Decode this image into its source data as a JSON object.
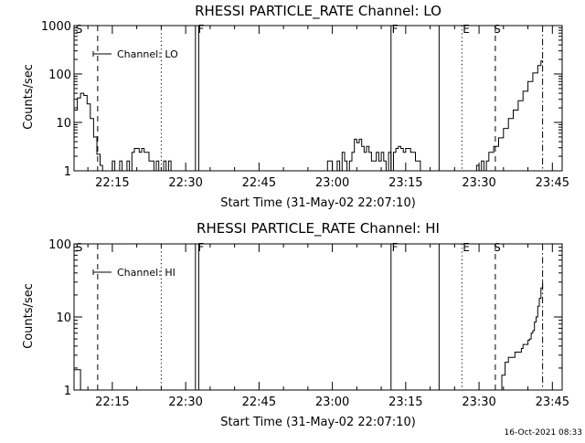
{
  "chart_data": [
    {
      "type": "line",
      "title": "RHESSI PARTICLE_RATE Channel: LO",
      "xlabel": "Start Time (31-May-02 22:07:10)",
      "ylabel": "Counts/sec",
      "yscale": "log",
      "xlim": [
        "22:07:10",
        "23:47:00"
      ],
      "ylim": [
        1,
        1000
      ],
      "x_ticks": [
        "22:15",
        "22:30",
        "22:45",
        "23:00",
        "23:15",
        "23:30",
        "23:45"
      ],
      "y_ticks": [
        "1",
        "10",
        "100",
        "1000"
      ],
      "legend": {
        "label": "Channel: LO",
        "position": "top-left"
      },
      "flag_labels": [
        {
          "text": "S",
          "time": "22:07:30"
        },
        {
          "text": "F",
          "time": "22:32:30"
        },
        {
          "text": "F",
          "time": "23:12:10"
        },
        {
          "text": "E",
          "time": "23:26:40"
        },
        {
          "text": "S",
          "time": "23:33:00"
        }
      ],
      "markers": [
        {
          "time": "22:12:00",
          "style": "dashed"
        },
        {
          "time": "22:25:00",
          "style": "dotted"
        },
        {
          "time": "22:32:00",
          "style": "solid"
        },
        {
          "time": "22:32:40",
          "style": "solid"
        },
        {
          "time": "23:12:00",
          "style": "solid"
        },
        {
          "time": "23:21:50",
          "style": "solid"
        },
        {
          "time": "23:26:30",
          "style": "dotted"
        },
        {
          "time": "23:33:20",
          "style": "dashed"
        },
        {
          "time": "23:43:00",
          "style": "dashdot"
        }
      ],
      "series": [
        {
          "x": [
            "22:07:10",
            "22:07:50",
            "22:08:30",
            "22:09:10",
            "22:09:50",
            "22:10:30",
            "22:11:10",
            "22:11:50",
            "22:12:30",
            "22:13:00",
            "22:13:30",
            "22:14:00",
            "22:14:20",
            "22:14:40",
            "22:15:00",
            "22:15:30",
            "22:16:00",
            "22:16:30",
            "22:17:00",
            "22:17:30",
            "22:18:00",
            "22:18:30",
            "22:19:00",
            "22:19:30",
            "22:20:00",
            "22:20:30",
            "22:21:00",
            "22:21:30",
            "22:22:00",
            "22:22:30",
            "22:23:00",
            "22:23:30",
            "22:24:00",
            "22:24:30",
            "22:25:00",
            "22:25:30",
            "22:26:00",
            "22:26:30",
            "22:27:00",
            "22:28:00",
            "22:29:00",
            "22:30:00",
            "22:31:00",
            "22:32:00",
            "22:32:30",
            "22:33:00",
            "22:40:00",
            "22:50:00",
            "22:58:30",
            "22:59:00",
            "22:59:30",
            "23:00:00",
            "23:00:30",
            "23:01:00",
            "23:01:30",
            "23:02:00",
            "23:02:30",
            "23:03:00",
            "23:03:30",
            "23:04:00",
            "23:04:30",
            "23:05:00",
            "23:05:30",
            "23:06:00",
            "23:06:30",
            "23:07:00",
            "23:07:30",
            "23:08:00",
            "23:08:30",
            "23:09:00",
            "23:09:30",
            "23:10:00",
            "23:10:30",
            "23:11:00",
            "23:11:30",
            "23:12:00",
            "23:12:30",
            "23:13:00",
            "23:13:30",
            "23:14:00",
            "23:14:30",
            "23:15:00",
            "23:15:30",
            "23:16:00",
            "23:16:30",
            "23:17:00",
            "23:18:00",
            "23:20:00",
            "23:25:00",
            "23:29:00",
            "23:29:30",
            "23:30:00",
            "23:30:30",
            "23:31:00",
            "23:31:30",
            "23:32:00",
            "23:32:30",
            "23:33:00",
            "23:34:00",
            "23:35:00",
            "23:36:00",
            "23:37:00",
            "23:38:00",
            "23:39:00",
            "23:40:00",
            "23:41:00",
            "23:42:00",
            "23:42:40",
            "23:43:00"
          ],
          "y": [
            18,
            32,
            40,
            36,
            24,
            12,
            5,
            2.2,
            1.3,
            1,
            1,
            1,
            1,
            1,
            1.6,
            1,
            1,
            1.6,
            1,
            1,
            1.6,
            1,
            2.4,
            2.9,
            2.9,
            2.4,
            2.9,
            2.4,
            2.4,
            1.6,
            1.6,
            1,
            1.6,
            1,
            1,
            1.6,
            1,
            1.6,
            1,
            1,
            1,
            1,
            1,
            1,
            1,
            1,
            1,
            1,
            1,
            1.6,
            1.6,
            1,
            1,
            1.6,
            1,
            2.4,
            1.6,
            1,
            1.6,
            2.4,
            4.5,
            3.8,
            4.5,
            3.2,
            2.4,
            3.2,
            2.4,
            1.6,
            1.6,
            2.4,
            1.6,
            2.4,
            1.6,
            1,
            2.4,
            1,
            2.4,
            2.9,
            3.2,
            2.9,
            2.4,
            2.9,
            2.9,
            2.4,
            2.4,
            1.6,
            1,
            1,
            1,
            1,
            1.3,
            1,
            1.6,
            1,
            1.6,
            2.4,
            2.4,
            3.2,
            4.8,
            7.5,
            12,
            18,
            28,
            44,
            70,
            105,
            150,
            185,
            170
          ]
        }
      ]
    },
    {
      "type": "line",
      "title": "RHESSI PARTICLE_RATE Channel: HI",
      "xlabel": "Start Time (31-May-02 22:07:10)",
      "ylabel": "Counts/sec",
      "yscale": "log",
      "xlim": [
        "22:07:10",
        "23:47:00"
      ],
      "ylim": [
        1,
        100
      ],
      "x_ticks": [
        "22:15",
        "22:30",
        "22:45",
        "23:00",
        "23:15",
        "23:30",
        "23:45"
      ],
      "y_ticks": [
        "1",
        "10",
        "100"
      ],
      "legend": {
        "label": "Channel: HI",
        "position": "top-left"
      },
      "flag_labels": [
        {
          "text": "S",
          "time": "22:07:30"
        },
        {
          "text": "F",
          "time": "22:32:30"
        },
        {
          "text": "F",
          "time": "23:12:10"
        },
        {
          "text": "E",
          "time": "23:26:40"
        },
        {
          "text": "S",
          "time": "23:33:00"
        }
      ],
      "markers": [
        {
          "time": "22:12:00",
          "style": "dashed"
        },
        {
          "time": "22:25:00",
          "style": "dotted"
        },
        {
          "time": "22:32:00",
          "style": "solid"
        },
        {
          "time": "22:32:40",
          "style": "solid"
        },
        {
          "time": "23:12:00",
          "style": "solid"
        },
        {
          "time": "23:21:50",
          "style": "solid"
        },
        {
          "time": "23:26:30",
          "style": "dotted"
        },
        {
          "time": "23:33:20",
          "style": "dashed"
        },
        {
          "time": "23:43:00",
          "style": "dashdot"
        }
      ],
      "series": [
        {
          "x": [
            "22:07:10",
            "22:08:00",
            "22:08:30",
            "22:09:00",
            "22:20:00",
            "22:40:00",
            "23:00:00",
            "23:20:00",
            "23:34:00",
            "23:34:40",
            "23:35:20",
            "23:36:00",
            "23:36:40",
            "23:37:20",
            "23:37:20",
            "23:38:00",
            "23:38:40",
            "23:39:00",
            "23:39:30",
            "23:40:00",
            "23:40:20",
            "23:40:40",
            "23:41:00",
            "23:41:20",
            "23:41:40",
            "23:42:00",
            "23:42:20",
            "23:42:40",
            "23:43:00"
          ],
          "y": [
            1.9,
            1.9,
            1,
            1,
            1,
            1,
            1,
            1,
            1,
            1.6,
            2.4,
            2.8,
            2.8,
            2.8,
            3.3,
            3.3,
            3.7,
            4.2,
            4.2,
            4.8,
            5.0,
            6.0,
            6.5,
            8.5,
            10,
            14,
            18,
            25,
            31
          ]
        }
      ]
    }
  ],
  "timestamp": "16-Oct-2021 08:33"
}
